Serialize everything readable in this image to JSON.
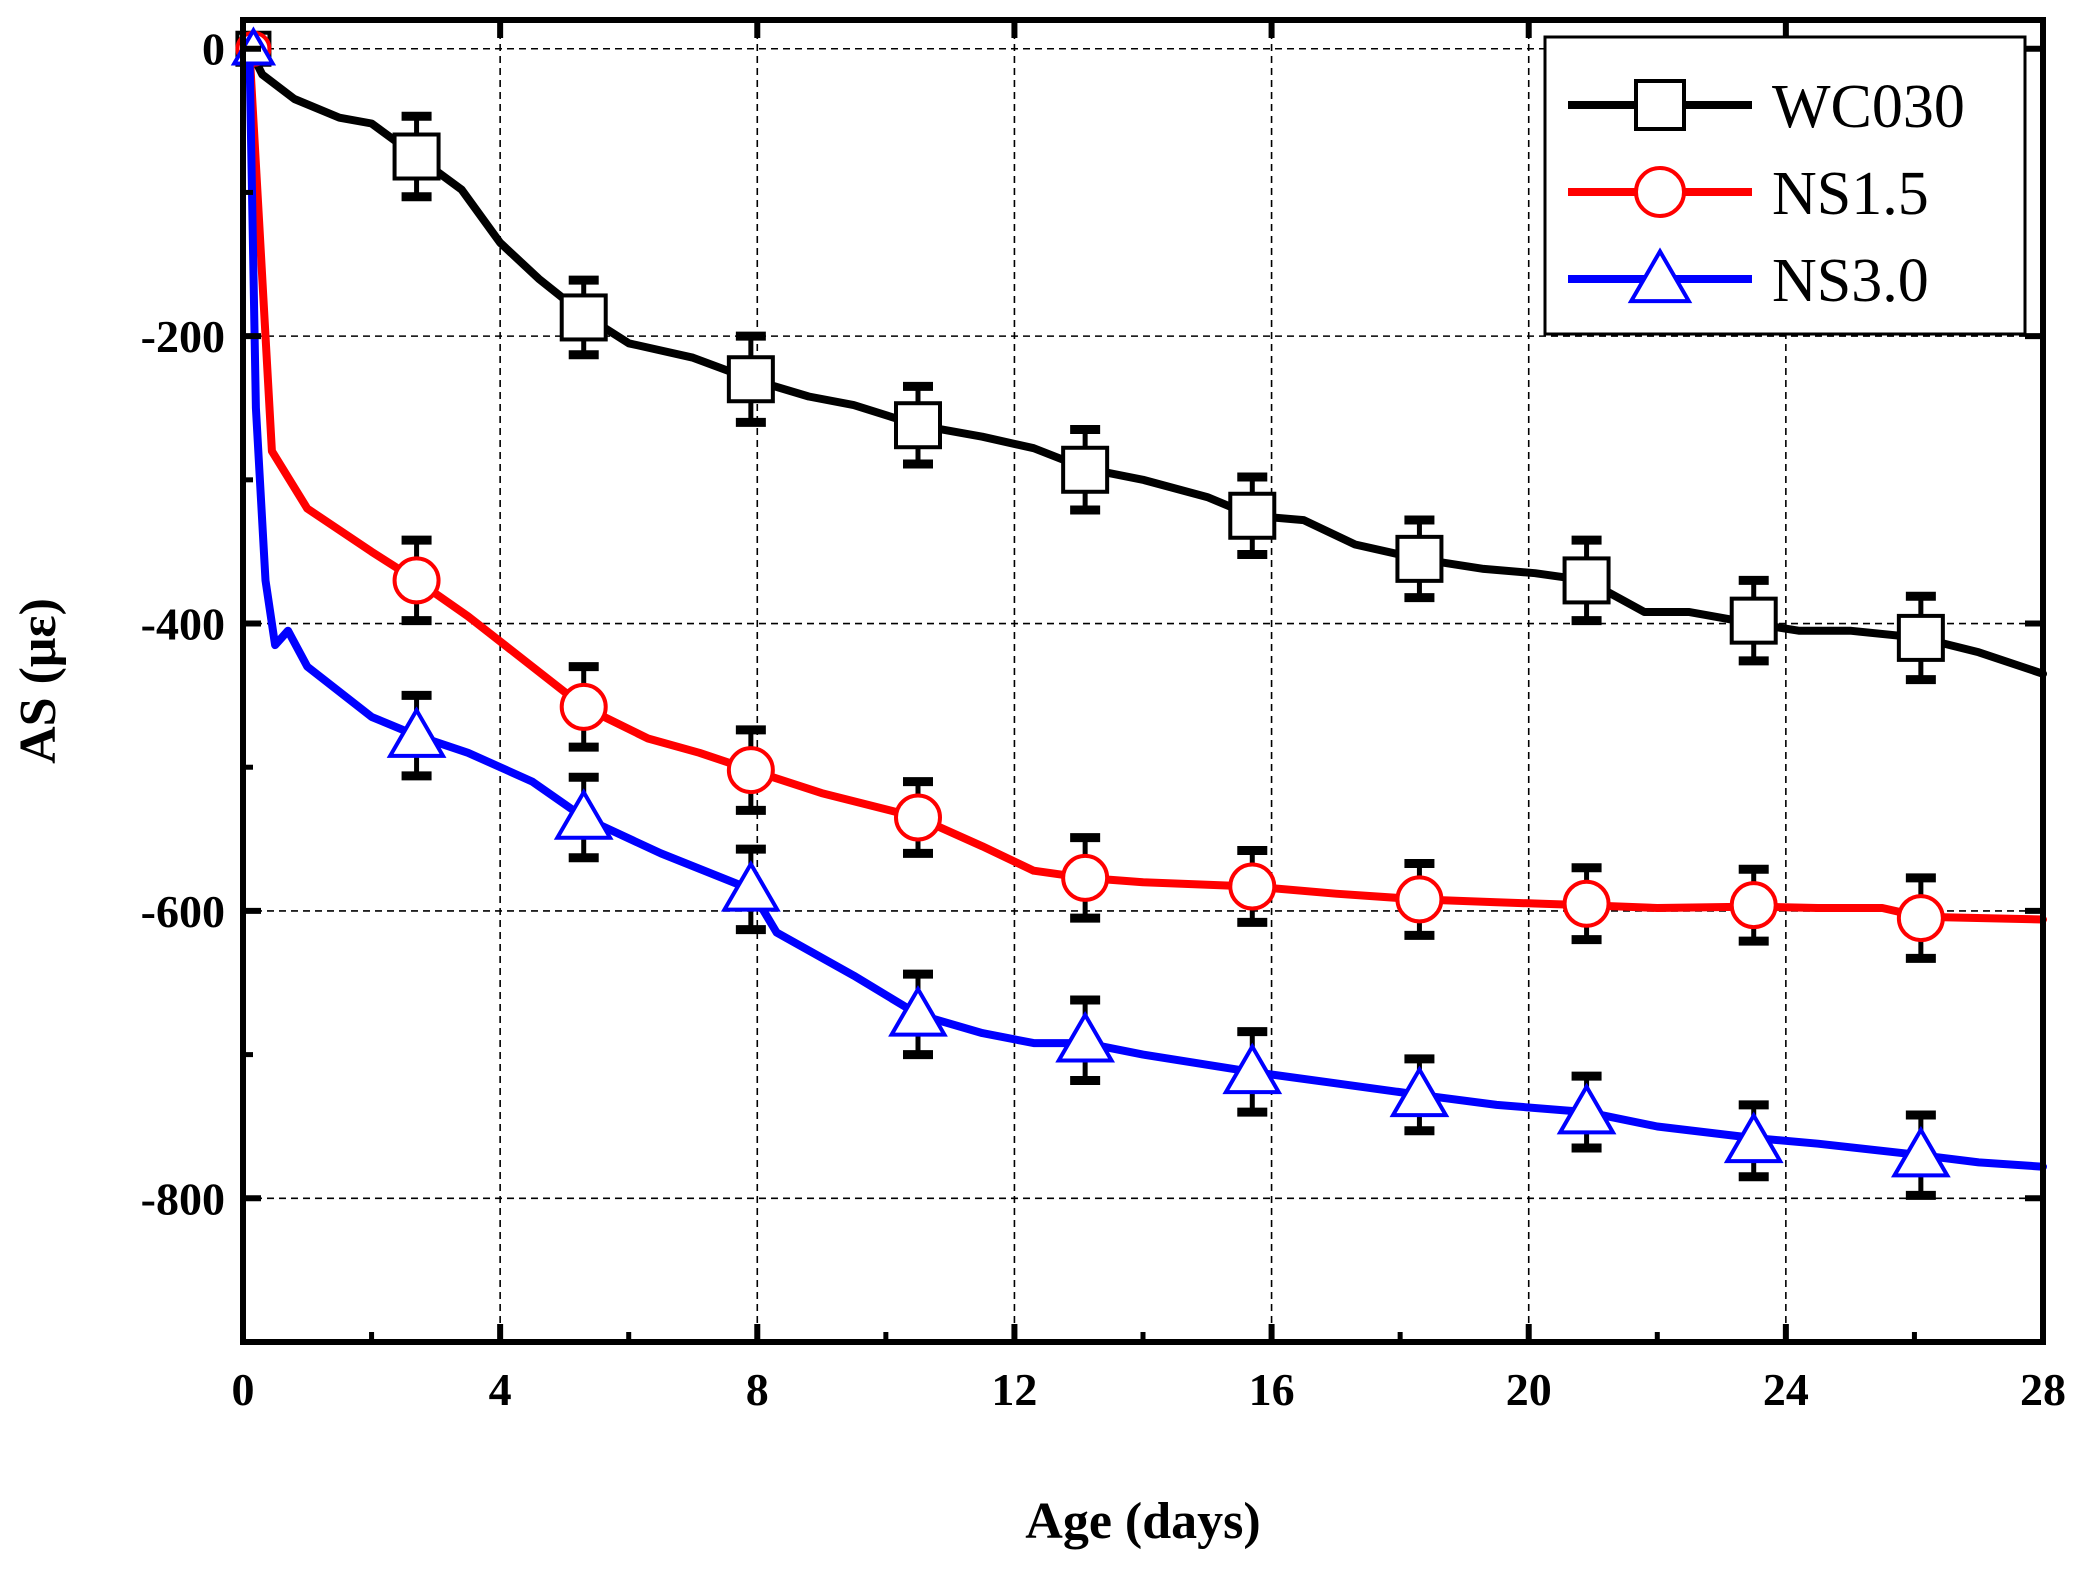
{
  "chart_data": {
    "type": "line",
    "title": "",
    "xlabel": "Age (days)",
    "ylabel": "AS (με)",
    "xlim": [
      0,
      28
    ],
    "ylim": [
      -900,
      20
    ],
    "xticks": [
      0,
      4,
      8,
      12,
      16,
      20,
      24,
      28
    ],
    "yticks": [
      0,
      -200,
      -400,
      -600,
      -800
    ],
    "grid": true,
    "legend_position": "top-right",
    "series": [
      {
        "name": "WC030",
        "color": "#000000",
        "marker": "square",
        "curve": [
          [
            0.1,
            0
          ],
          [
            0.3,
            -18
          ],
          [
            0.8,
            -35
          ],
          [
            1.5,
            -48
          ],
          [
            2,
            -52
          ],
          [
            2.7,
            -75
          ],
          [
            3.4,
            -98
          ],
          [
            4,
            -135
          ],
          [
            4.6,
            -160
          ],
          [
            5.3,
            -185
          ],
          [
            6,
            -205
          ],
          [
            7,
            -215
          ],
          [
            7.9,
            -230
          ],
          [
            8.8,
            -242
          ],
          [
            9.5,
            -248
          ],
          [
            10.5,
            -262
          ],
          [
            11.5,
            -270
          ],
          [
            12.3,
            -278
          ],
          [
            13.1,
            -292
          ],
          [
            14,
            -300
          ],
          [
            15,
            -312
          ],
          [
            15.7,
            -325
          ],
          [
            16.5,
            -328
          ],
          [
            17.3,
            -345
          ],
          [
            18.3,
            -355
          ],
          [
            19.3,
            -362
          ],
          [
            20.1,
            -365
          ],
          [
            20.9,
            -370
          ],
          [
            21.8,
            -392
          ],
          [
            22.5,
            -392
          ],
          [
            23.5,
            -400
          ],
          [
            24.2,
            -405
          ],
          [
            25,
            -405
          ],
          [
            26.1,
            -410
          ],
          [
            27,
            -420
          ],
          [
            28,
            -435
          ]
        ],
        "markers": [
          {
            "x": 2.7,
            "y": -75,
            "err": 28
          },
          {
            "x": 5.3,
            "y": -187,
            "err": 26
          },
          {
            "x": 7.9,
            "y": -230,
            "err": 30
          },
          {
            "x": 10.5,
            "y": -262,
            "err": 27
          },
          {
            "x": 13.1,
            "y": -293,
            "err": 28
          },
          {
            "x": 15.7,
            "y": -325,
            "err": 27
          },
          {
            "x": 18.3,
            "y": -355,
            "err": 27
          },
          {
            "x": 20.9,
            "y": -370,
            "err": 28
          },
          {
            "x": 23.5,
            "y": -398,
            "err": 28
          },
          {
            "x": 26.1,
            "y": -410,
            "err": 29
          }
        ]
      },
      {
        "name": "NS1.5",
        "color": "#ff0000",
        "marker": "circle",
        "curve": [
          [
            0.1,
            0
          ],
          [
            0.25,
            -120
          ],
          [
            0.45,
            -280
          ],
          [
            1,
            -320
          ],
          [
            2,
            -350
          ],
          [
            2.7,
            -370
          ],
          [
            3.5,
            -395
          ],
          [
            4.5,
            -430
          ],
          [
            5.3,
            -458
          ],
          [
            6.3,
            -480
          ],
          [
            7.1,
            -490
          ],
          [
            7.9,
            -502
          ],
          [
            9,
            -518
          ],
          [
            10.5,
            -535
          ],
          [
            11.5,
            -555
          ],
          [
            12.3,
            -572
          ],
          [
            13.1,
            -577
          ],
          [
            14,
            -580
          ],
          [
            15.7,
            -583
          ],
          [
            17,
            -588
          ],
          [
            18.3,
            -592
          ],
          [
            19.5,
            -594
          ],
          [
            20.9,
            -596
          ],
          [
            22,
            -598
          ],
          [
            23.5,
            -597
          ],
          [
            24.5,
            -598
          ],
          [
            25.5,
            -598
          ],
          [
            26.1,
            -604
          ],
          [
            28,
            -606
          ]
        ],
        "markers": [
          {
            "x": 2.7,
            "y": -370,
            "err": 28
          },
          {
            "x": 5.3,
            "y": -458,
            "err": 28
          },
          {
            "x": 7.9,
            "y": -502,
            "err": 28
          },
          {
            "x": 10.5,
            "y": -535,
            "err": 25
          },
          {
            "x": 13.1,
            "y": -577,
            "err": 28
          },
          {
            "x": 15.7,
            "y": -583,
            "err": 25
          },
          {
            "x": 18.3,
            "y": -592,
            "err": 25
          },
          {
            "x": 20.9,
            "y": -595,
            "err": 25
          },
          {
            "x": 23.5,
            "y": -596,
            "err": 25
          },
          {
            "x": 26.1,
            "y": -605,
            "err": 28
          }
        ]
      },
      {
        "name": "NS3.0",
        "color": "#0000ff",
        "marker": "triangle",
        "curve": [
          [
            0.1,
            0
          ],
          [
            0.2,
            -250
          ],
          [
            0.35,
            -370
          ],
          [
            0.5,
            -415
          ],
          [
            0.7,
            -405
          ],
          [
            1,
            -430
          ],
          [
            2,
            -465
          ],
          [
            2.7,
            -478
          ],
          [
            3.5,
            -490
          ],
          [
            4.5,
            -510
          ],
          [
            5.3,
            -535
          ],
          [
            6.5,
            -560
          ],
          [
            7.9,
            -585
          ],
          [
            8.3,
            -615
          ],
          [
            9.5,
            -645
          ],
          [
            10.5,
            -672
          ],
          [
            11.5,
            -685
          ],
          [
            12.3,
            -692
          ],
          [
            13.1,
            -692
          ],
          [
            14,
            -700
          ],
          [
            15.7,
            -712
          ],
          [
            17,
            -720
          ],
          [
            18.3,
            -728
          ],
          [
            19.5,
            -735
          ],
          [
            20.9,
            -740
          ],
          [
            22,
            -750
          ],
          [
            23.5,
            -758
          ],
          [
            24.5,
            -762
          ],
          [
            26.1,
            -770
          ],
          [
            27,
            -775
          ],
          [
            28,
            -778
          ]
        ],
        "markers": [
          {
            "x": 2.7,
            "y": -478,
            "err": 28
          },
          {
            "x": 5.3,
            "y": -535,
            "err": 28
          },
          {
            "x": 7.9,
            "y": -585,
            "err": 28
          },
          {
            "x": 10.5,
            "y": -672,
            "err": 28
          },
          {
            "x": 13.1,
            "y": -690,
            "err": 28
          },
          {
            "x": 15.7,
            "y": -712,
            "err": 28
          },
          {
            "x": 18.3,
            "y": -728,
            "err": 25
          },
          {
            "x": 20.9,
            "y": -740,
            "err": 25
          },
          {
            "x": 23.5,
            "y": -760,
            "err": 25
          },
          {
            "x": 26.1,
            "y": -770,
            "err": 28
          }
        ]
      }
    ]
  }
}
